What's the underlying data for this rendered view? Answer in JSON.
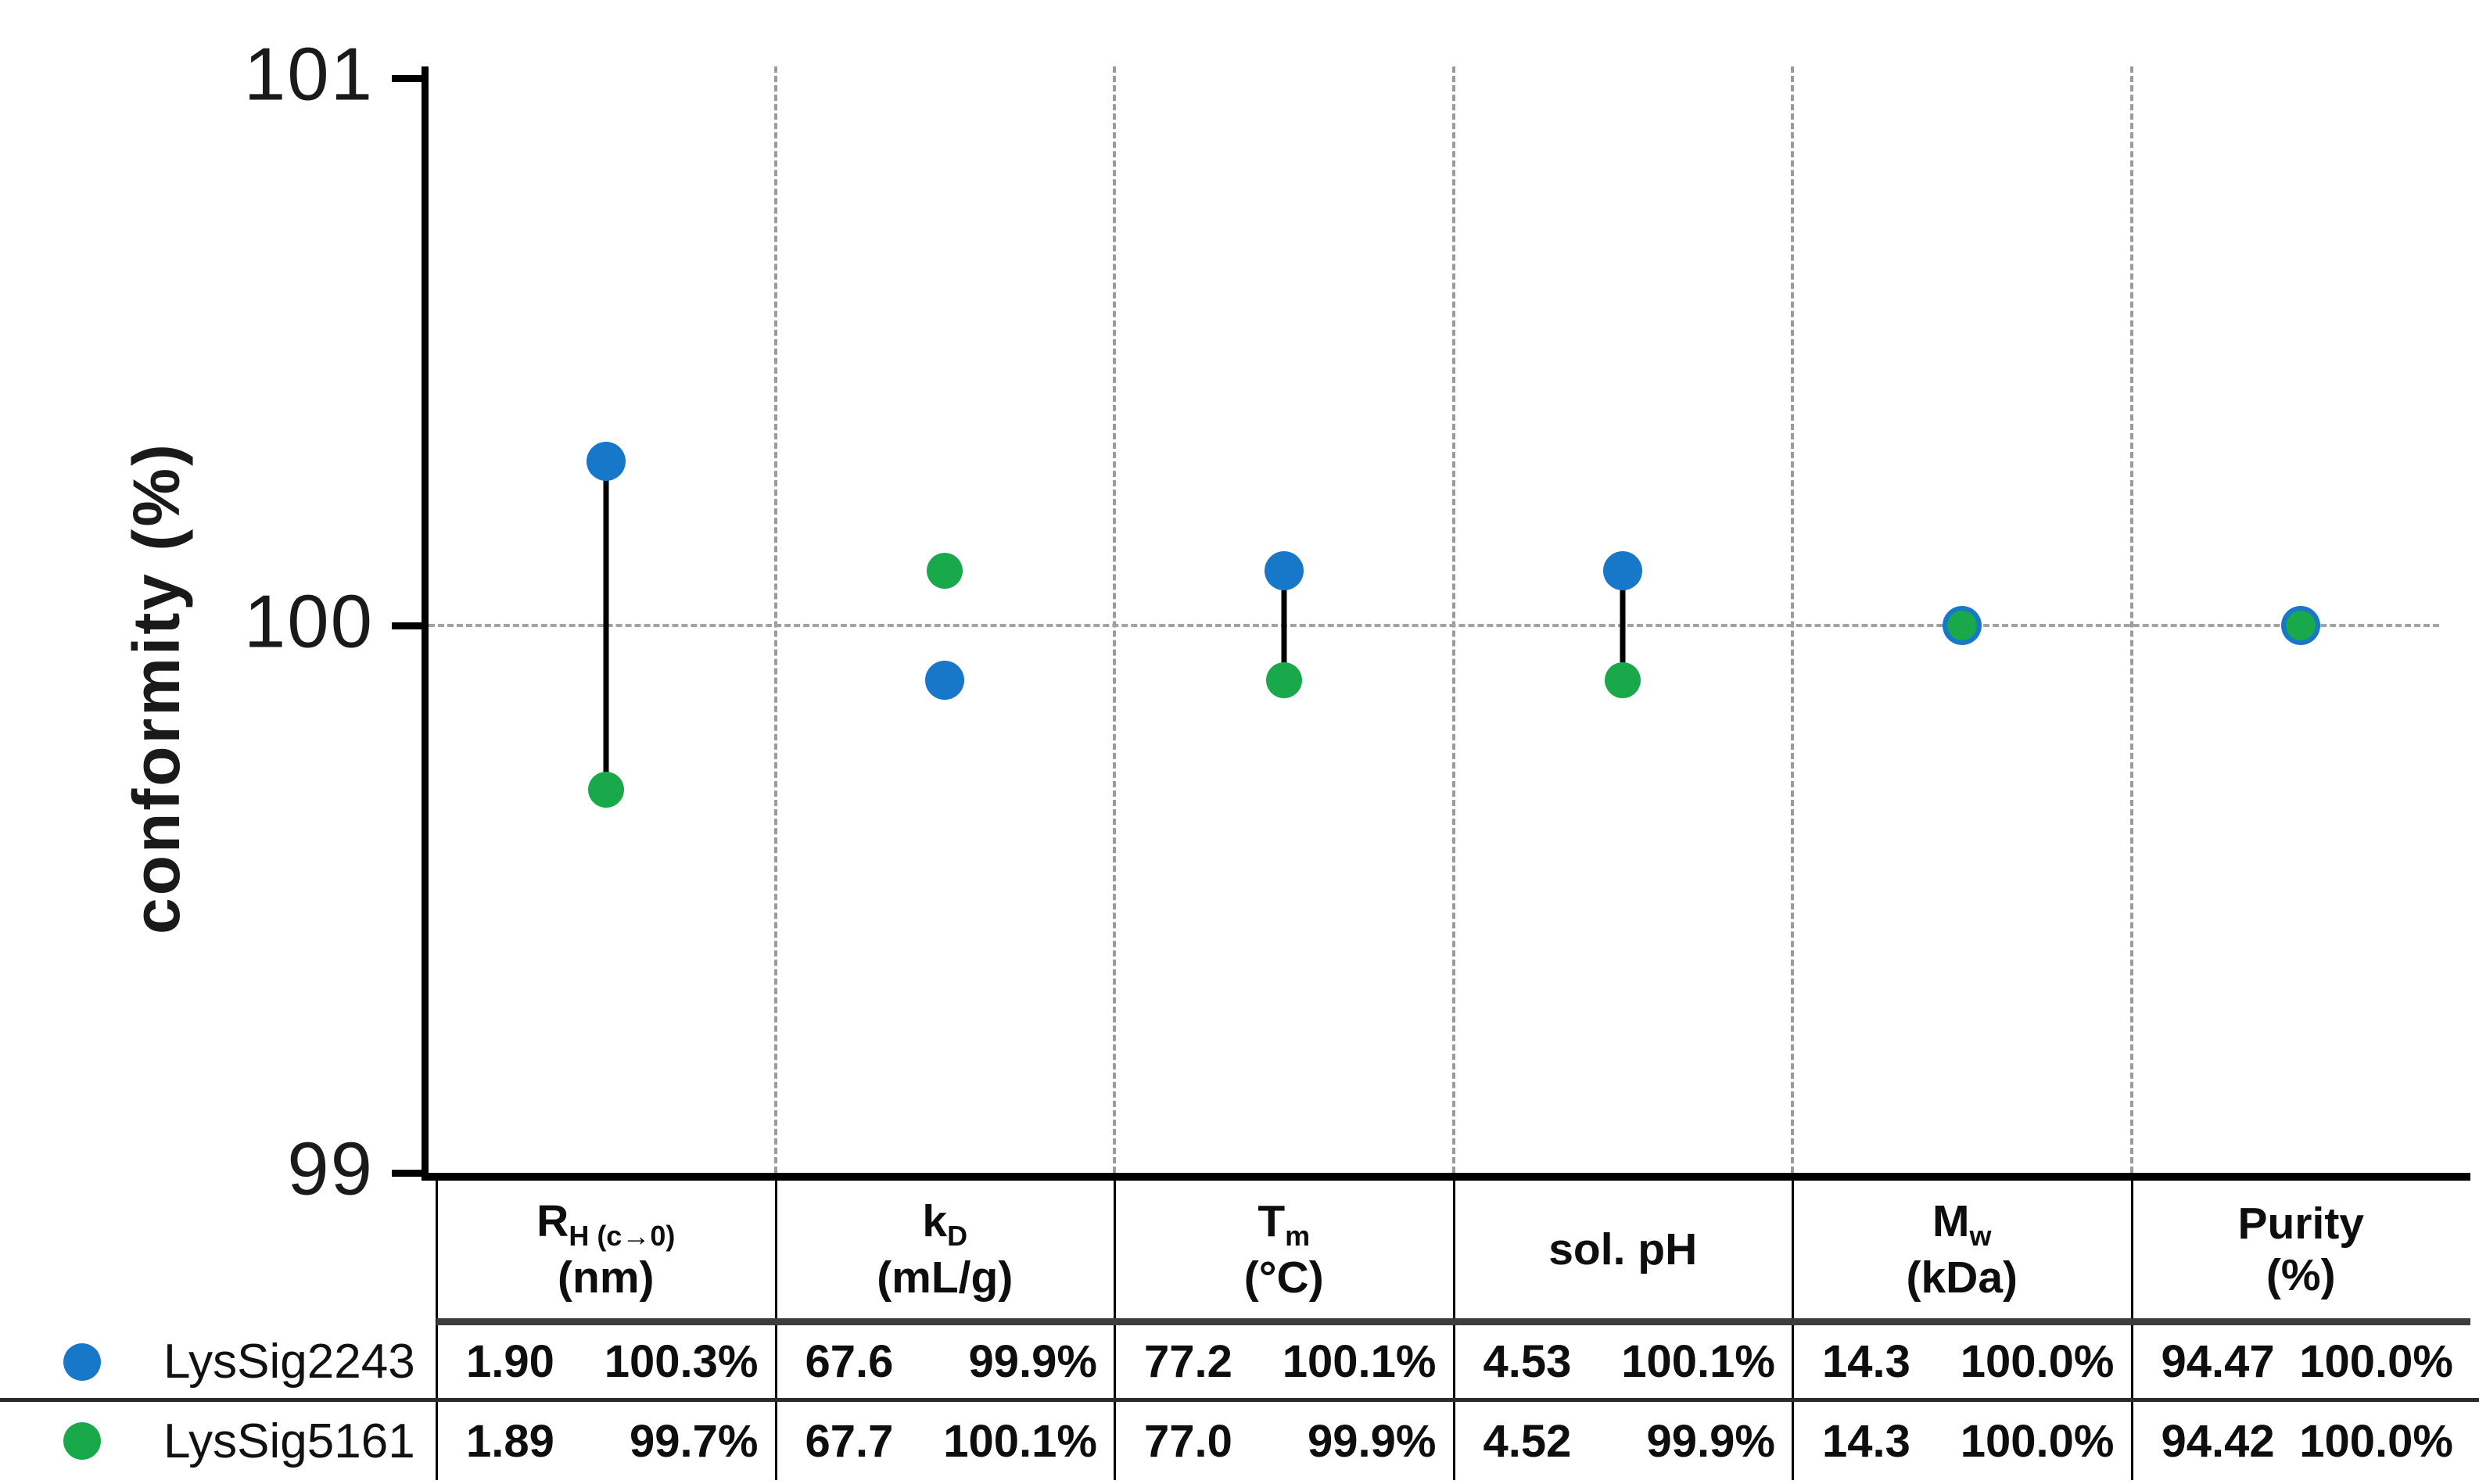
{
  "chart": {
    "y_axis": {
      "label": "conformity (%)",
      "tick_labels": [
        "101",
        "100",
        "99"
      ],
      "tick_values": [
        101,
        100,
        99
      ]
    },
    "reference_value": 100,
    "colors": {
      "series1_blue": "#1777c8",
      "series2_green": "#19a94a",
      "axis_black": "#000000",
      "grid_gray": "#9b9b9b",
      "header_separator_gray": "#3d3d3d"
    }
  },
  "chart_data": {
    "type": "scatter",
    "title": "",
    "xlabel": "",
    "ylabel": "conformity (%)",
    "ylim": [
      99,
      101
    ],
    "yticks": [
      99,
      100,
      101
    ],
    "grid": "vertical dashed separators between categories, horizontal dashed reference line at 100",
    "legend_position": "bottom-left table rows",
    "categories": [
      "RH (c→0) (nm)",
      "kD (mL/g)",
      "Tm (°C)",
      "sol. pH",
      "Mw (kDa)",
      "Purity (%)"
    ],
    "series": [
      {
        "name": "LysSig2243",
        "color": "#1777c8",
        "values": [
          100.3,
          99.9,
          100.1,
          100.1,
          100.0,
          100.0
        ]
      },
      {
        "name": "LysSig5161",
        "color": "#19a94a",
        "values": [
          99.7,
          100.1,
          99.9,
          99.9,
          100.0,
          100.0
        ]
      }
    ],
    "connector_line_between_points": [
      true,
      false,
      true,
      true,
      false,
      false
    ],
    "reference_line_y": 100
  },
  "table": {
    "columns": [
      {
        "main": "R",
        "sub": "H (c→0)",
        "unit": "(nm)"
      },
      {
        "main": "k",
        "sub": "D",
        "unit": "(mL/g)"
      },
      {
        "main": "T",
        "sub": "m",
        "unit": "(°C)"
      },
      {
        "main": "sol. pH",
        "sub": "",
        "unit": ""
      },
      {
        "main": "M",
        "sub": "w",
        "unit": "(kDa)"
      },
      {
        "main": "Purity",
        "sub": "",
        "unit": "(%)"
      }
    ],
    "rows": [
      {
        "name": "LysSig2243",
        "marker_color": "#1777c8",
        "cells": [
          [
            "1.90",
            "100.3%"
          ],
          [
            "67.6",
            "99.9%"
          ],
          [
            "77.2",
            "100.1%"
          ],
          [
            "4.53",
            "100.1%"
          ],
          [
            "14.3",
            "100.0%"
          ],
          [
            "94.47",
            "100.0%"
          ]
        ]
      },
      {
        "name": "LysSig5161",
        "marker_color": "#19a94a",
        "cells": [
          [
            "1.89",
            "99.7%"
          ],
          [
            "67.7",
            "100.1%"
          ],
          [
            "77.0",
            "99.9%"
          ],
          [
            "4.52",
            "99.9%"
          ],
          [
            "14.3",
            "100.0%"
          ],
          [
            "94.42",
            "100.0%"
          ]
        ]
      }
    ]
  }
}
